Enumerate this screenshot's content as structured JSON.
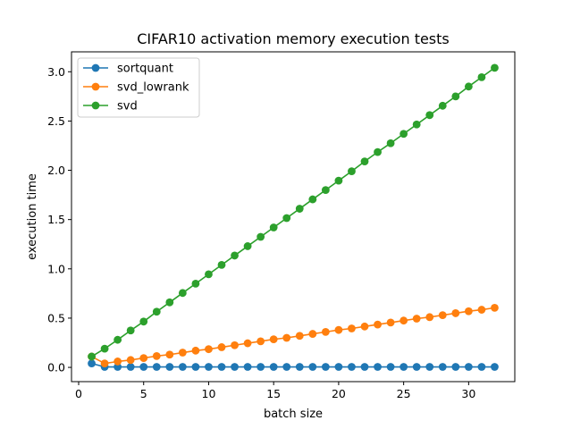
{
  "chart_data": {
    "type": "line",
    "title": "CIFAR10 activation memory execution tests",
    "xlabel": "batch size",
    "ylabel": "execution time",
    "xlim": [
      -0.55,
      33.55
    ],
    "ylim": [
      -0.1445,
      3.202
    ],
    "xticks": [
      0,
      5,
      10,
      15,
      20,
      25,
      30
    ],
    "yticks": [
      0.0,
      0.5,
      1.0,
      1.5,
      2.0,
      2.5,
      3.0
    ],
    "xtick_labels": [
      "0",
      "5",
      "10",
      "15",
      "20",
      "25",
      "30"
    ],
    "ytick_labels": [
      "0.0",
      "0.5",
      "1.0",
      "1.5",
      "2.0",
      "2.5",
      "3.0"
    ],
    "legend_position": "upper-left",
    "grid": false,
    "x": [
      1,
      2,
      3,
      4,
      5,
      6,
      7,
      8,
      9,
      10,
      11,
      12,
      13,
      14,
      15,
      16,
      17,
      18,
      19,
      20,
      21,
      22,
      23,
      24,
      25,
      26,
      27,
      28,
      29,
      30,
      31,
      32
    ],
    "series": [
      {
        "name": "sortquant",
        "color": "#1f77b4",
        "values": [
          0.04,
          0.005,
          0.005,
          0.005,
          0.005,
          0.005,
          0.005,
          0.005,
          0.005,
          0.005,
          0.005,
          0.005,
          0.005,
          0.005,
          0.005,
          0.005,
          0.005,
          0.005,
          0.005,
          0.005,
          0.005,
          0.005,
          0.005,
          0.005,
          0.005,
          0.005,
          0.005,
          0.005,
          0.005,
          0.005,
          0.005,
          0.005
        ]
      },
      {
        "name": "svd_lowrank",
        "color": "#ff7f0e",
        "values": [
          0.11,
          0.04,
          0.06,
          0.075,
          0.095,
          0.115,
          0.13,
          0.15,
          0.17,
          0.185,
          0.205,
          0.225,
          0.245,
          0.265,
          0.285,
          0.3,
          0.32,
          0.34,
          0.36,
          0.38,
          0.395,
          0.415,
          0.435,
          0.455,
          0.475,
          0.495,
          0.51,
          0.53,
          0.55,
          0.57,
          0.585,
          0.605
        ]
      },
      {
        "name": "svd",
        "color": "#2ca02c",
        "values": [
          0.11,
          0.19,
          0.28,
          0.375,
          0.465,
          0.565,
          0.66,
          0.755,
          0.85,
          0.945,
          1.04,
          1.135,
          1.23,
          1.325,
          1.42,
          1.515,
          1.61,
          1.705,
          1.8,
          1.895,
          1.99,
          2.09,
          2.185,
          2.275,
          2.37,
          2.465,
          2.56,
          2.655,
          2.75,
          2.85,
          2.945,
          3.04
        ]
      }
    ]
  }
}
